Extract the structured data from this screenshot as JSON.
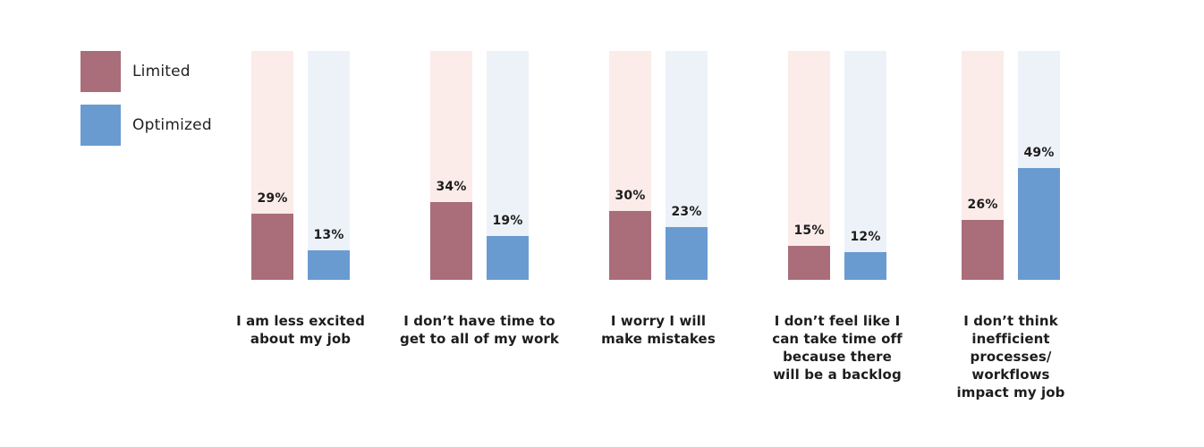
{
  "chart_data": {
    "type": "bar",
    "title": "",
    "xlabel": "",
    "ylabel": "",
    "ylim": [
      0,
      100
    ],
    "grid": false,
    "legend_position": "top-left",
    "value_suffix": "%",
    "categories": [
      "I am less excited\nabout my job",
      "I don’t have time to\nget to all of my work",
      "I worry I will\nmake mistakes",
      "I don’t feel like I\ncan take time off\nbecause there\nwill be a backlog",
      "I don’t think\ninefficient\nprocesses/\nworkflows\nimpact my job"
    ],
    "series": [
      {
        "name": "Limited",
        "color": "#a96e7a",
        "track_color": "#fbece9",
        "values": [
          29,
          34,
          30,
          15,
          26
        ]
      },
      {
        "name": "Optimized",
        "color": "#699bd1",
        "track_color": "#edf2f8",
        "values": [
          13,
          19,
          23,
          12,
          49
        ]
      }
    ]
  },
  "legend": {
    "items": [
      {
        "label": "Limited",
        "color": "#a96e7a"
      },
      {
        "label": "Optimized",
        "color": "#699bd1"
      }
    ]
  }
}
